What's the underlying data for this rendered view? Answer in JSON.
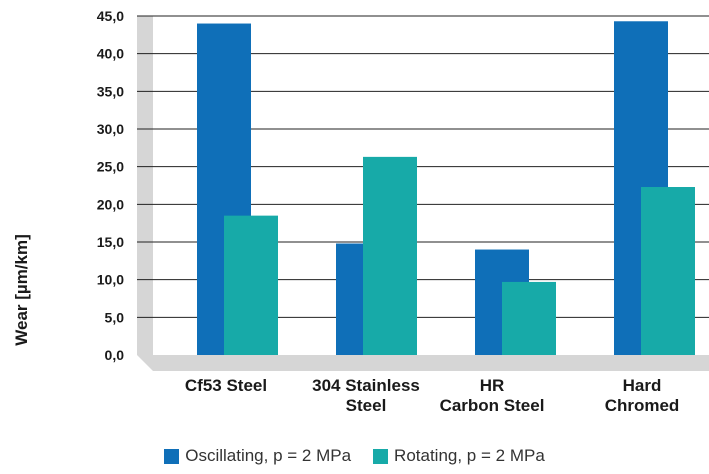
{
  "chart_data": {
    "type": "bar",
    "title": "",
    "xlabel": "",
    "ylabel": "Wear [µm/km]",
    "ylim": [
      0,
      45
    ],
    "yticks": [
      "0,0",
      "5,0",
      "10,0",
      "15,0",
      "20,0",
      "25,0",
      "30,0",
      "35,0",
      "40,0",
      "45,0"
    ],
    "grid": true,
    "legend_position": "bottom",
    "categories": [
      [
        "Cf53 Steel"
      ],
      [
        "304 Stainless",
        "Steel"
      ],
      [
        "HR",
        "Carbon Steel"
      ],
      [
        "Hard",
        "Chromed"
      ]
    ],
    "series": [
      {
        "name": "Oscillating, p = 2 MPa",
        "color": "#0f6fb8",
        "values": [
          44.0,
          14.8,
          14.0,
          44.3
        ]
      },
      {
        "name": "Rotating, p = 2 MPa",
        "color": "#17aaa8",
        "values": [
          18.5,
          26.3,
          9.7,
          22.3
        ]
      }
    ]
  }
}
